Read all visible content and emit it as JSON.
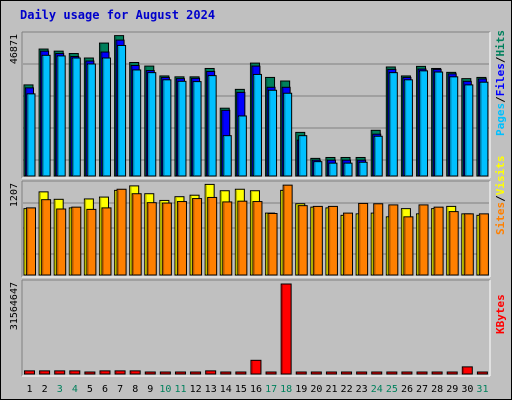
{
  "title": "Daily usage for August 2024",
  "colors": {
    "hits": "#00805c",
    "files": "#0000ff",
    "pages": "#00c0ff",
    "visits": "#ffff00",
    "sites": "#ff8000",
    "kbytes": "#ff0000",
    "weekend_label": "#00805c",
    "weekday_label": "#000000"
  },
  "legends": {
    "top": {
      "pages": "Pages",
      "files": "Files",
      "hits": "Hits",
      "sep": "/"
    },
    "mid": {
      "sites": "Sites",
      "visits": "Visits",
      "sep": "/"
    },
    "bottom": {
      "kbytes": "KBytes"
    }
  },
  "chart_data": {
    "type": "bar",
    "title": "Daily usage for August 2024",
    "categories": [
      "1",
      "2",
      "3",
      "4",
      "5",
      "6",
      "7",
      "8",
      "9",
      "10",
      "11",
      "12",
      "13",
      "14",
      "15",
      "16",
      "17",
      "18",
      "19",
      "20",
      "21",
      "22",
      "23",
      "24",
      "25",
      "26",
      "27",
      "28",
      "29",
      "30",
      "31"
    ],
    "weekend_days": [
      "3",
      "4",
      "10",
      "11",
      "17",
      "18",
      "24",
      "25",
      "31"
    ],
    "panels": [
      {
        "name": "top",
        "max_label": "46871",
        "ymax": 46871,
        "series": [
          {
            "name": "Hits",
            "values": [
              30500,
              42500,
              41800,
              41000,
              39500,
              44500,
              47000,
              38000,
              36800,
              33500,
              33200,
              33200,
              36000,
              22700,
              29000,
              37800,
              33000,
              31800,
              14600,
              5900,
              6200,
              6200,
              6200,
              15300,
              36500,
              33500,
              36700,
              36000,
              34700,
              32600,
              33000
            ]
          },
          {
            "name": "Files",
            "values": [
              29500,
              41800,
              41000,
              40000,
              38500,
              41500,
              45500,
              37000,
              35300,
              33000,
              32600,
              32700,
              35000,
              22000,
              28000,
              36800,
              29700,
              29700,
              12000,
              5300,
              5300,
              5300,
              5300,
              14000,
              35700,
              33000,
              35800,
              35700,
              34200,
              31700,
              32500
            ]
          },
          {
            "name": "Pages",
            "values": [
              27500,
              40400,
              40200,
              39500,
              37500,
              39500,
              43700,
              35500,
              34600,
              32200,
              31700,
              31600,
              33600,
              13500,
              20100,
              34000,
              28700,
              27700,
              13500,
              4800,
              4300,
              4300,
              4600,
              13300,
              34600,
              32200,
              35200,
              34800,
              33200,
              30500,
              31400
            ]
          }
        ]
      },
      {
        "name": "mid",
        "max_label": "1207",
        "ymax": 1207,
        "series": [
          {
            "name": "Visits",
            "values": [
              890,
              1115,
              1015,
              900,
              1020,
              1045,
              1135,
              1195,
              1090,
              1000,
              1050,
              1070,
              1215,
              1130,
              1150,
              1130,
              830,
              1135,
              955,
              910,
              900,
              800,
              820,
              830,
              780,
              890,
              820,
              890,
              920,
              820,
              800
            ]
          },
          {
            "name": "Sites",
            "values": [
              900,
              1010,
              885,
              910,
              880,
              900,
              1150,
              1090,
              970,
              965,
              985,
              1025,
              1040,
              980,
              990,
              985,
              825,
              1205,
              930,
              920,
              920,
              830,
              960,
              955,
              940,
              780,
              940,
              910,
              850,
              820,
              820
            ]
          }
        ]
      },
      {
        "name": "bottom",
        "max_label": "31564647",
        "ymax": 31564647,
        "series": [
          {
            "name": "KBytes",
            "values": [
              1100000,
              1100000,
              1100000,
              1100000,
              550000,
              1100000,
              1100000,
              1100000,
              550000,
              550000,
              550000,
              550000,
              1100000,
              550000,
              550000,
              4800000,
              550000,
              31564647,
              550000,
              550000,
              550000,
              550000,
              550000,
              550000,
              550000,
              550000,
              550000,
              550000,
              550000,
              2500000,
              550000
            ]
          }
        ]
      }
    ]
  }
}
